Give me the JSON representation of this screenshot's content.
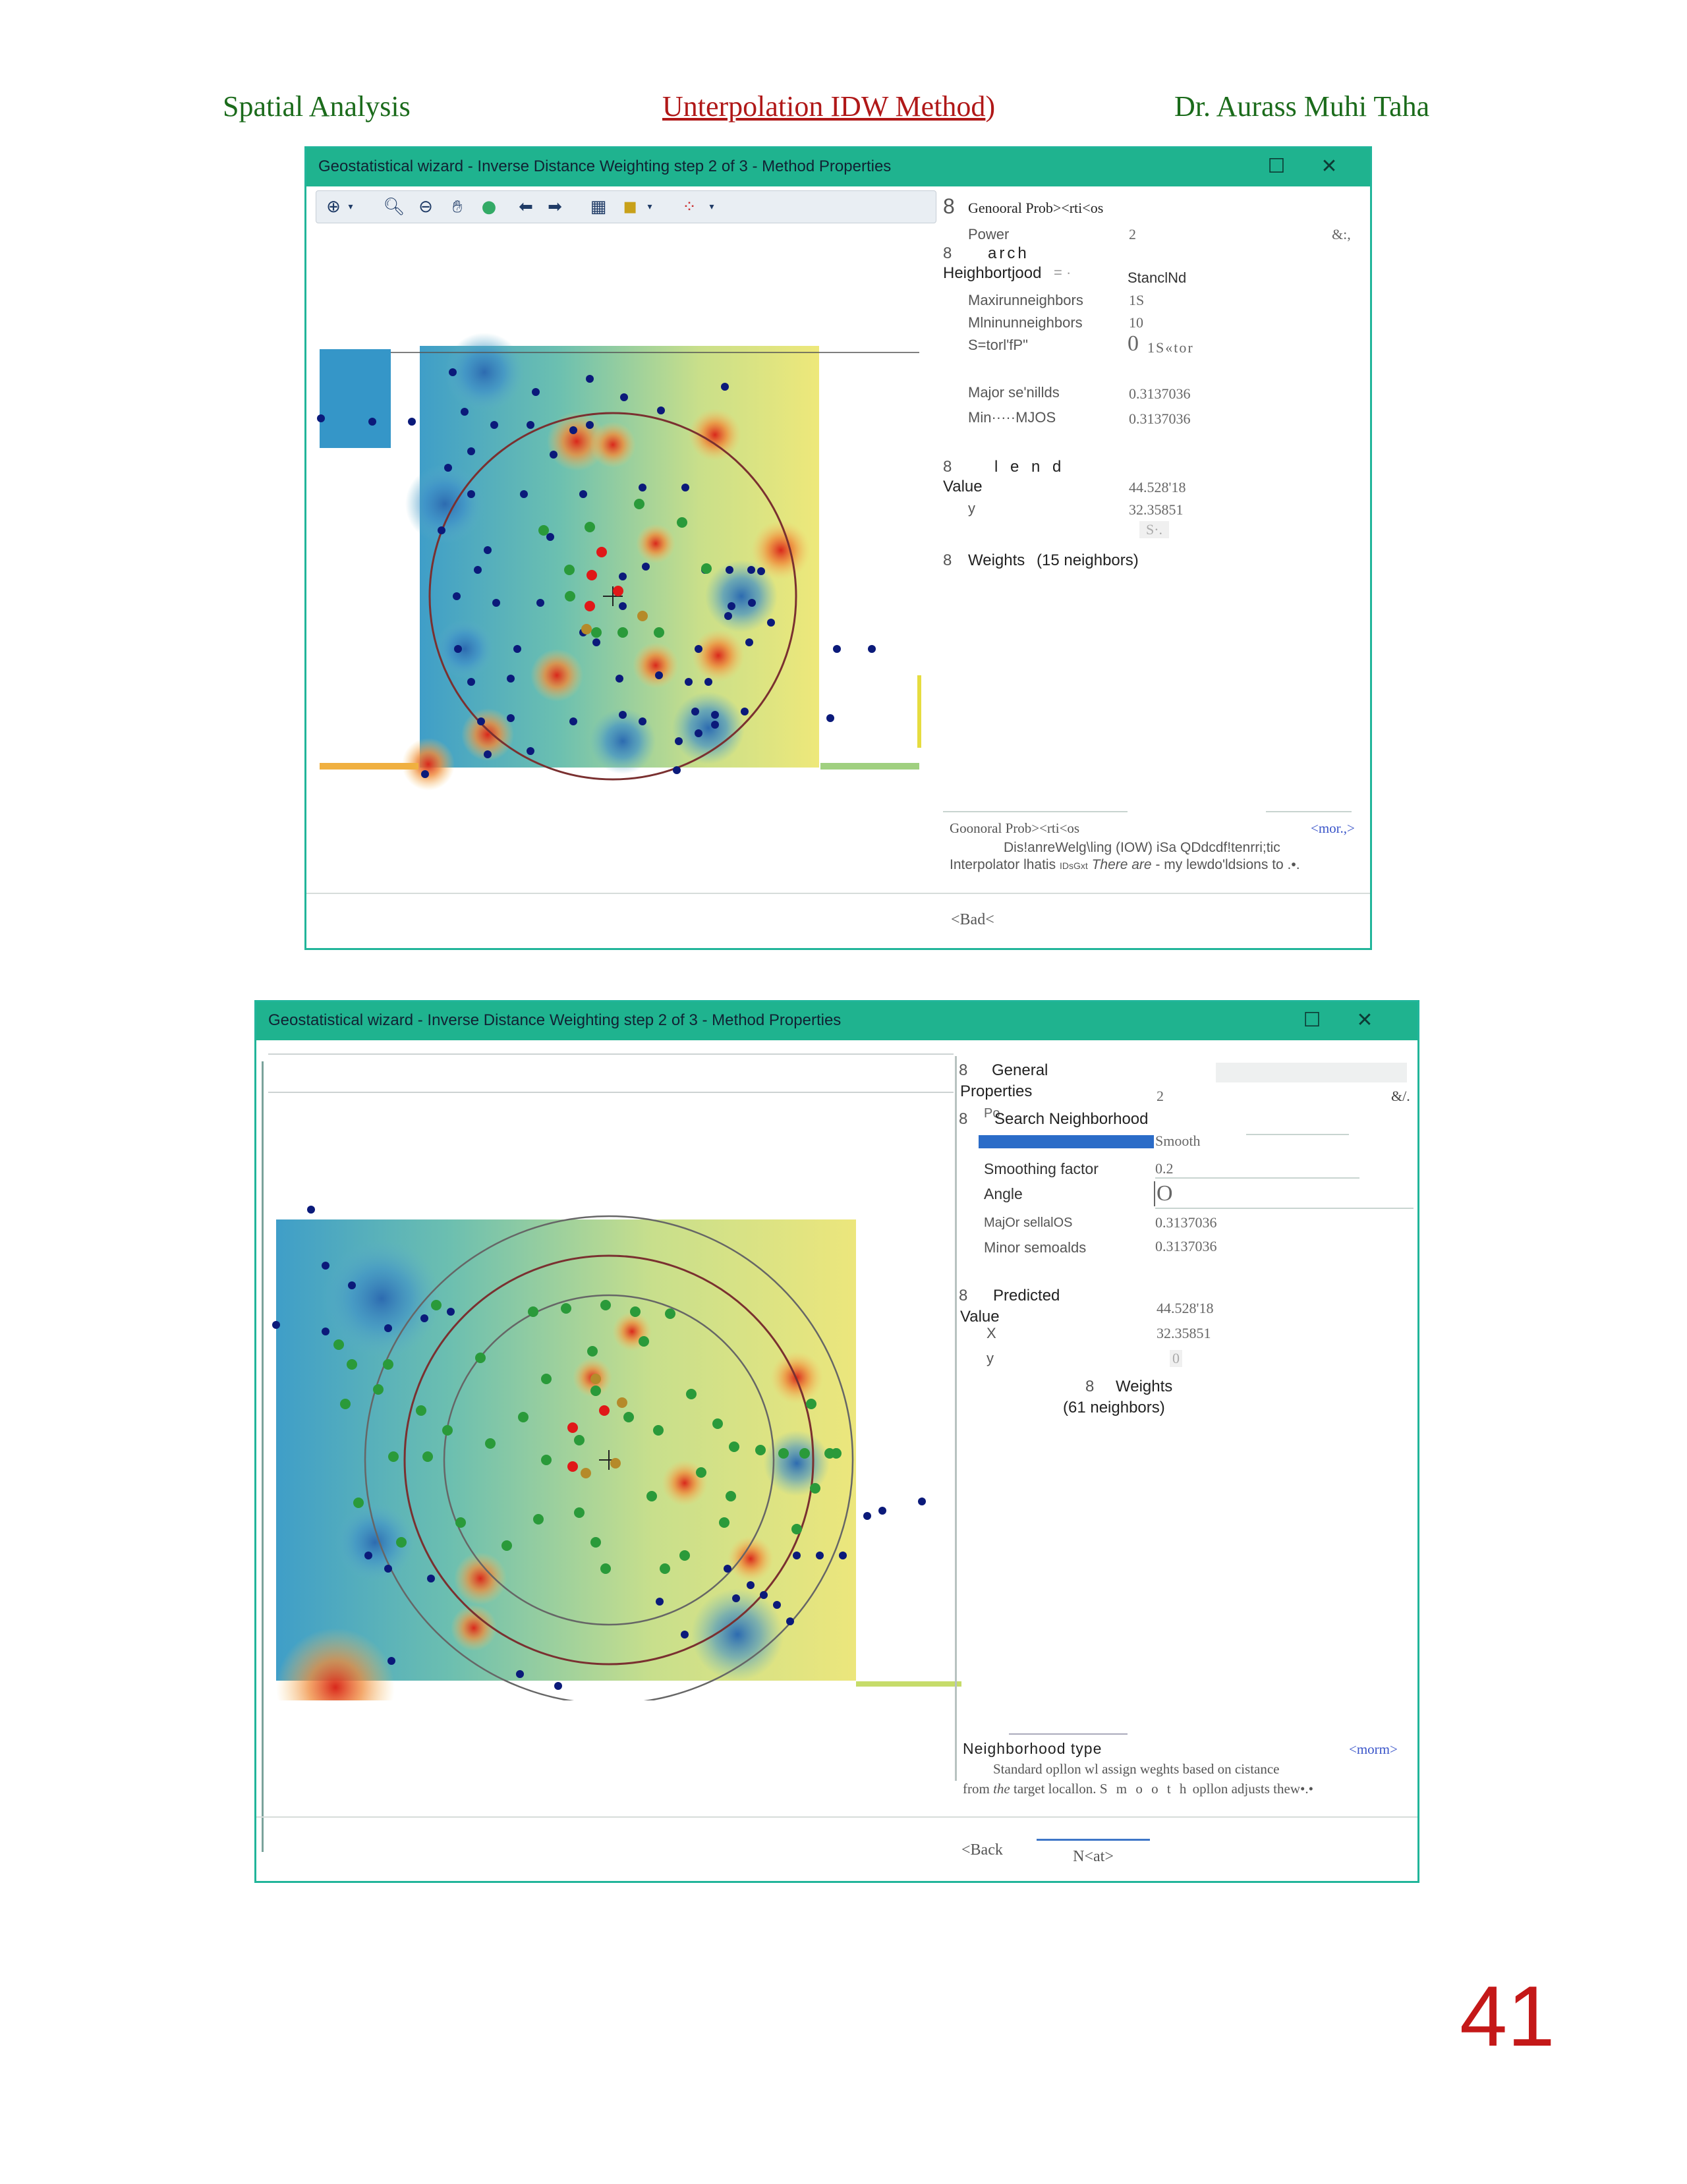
{
  "header": {
    "left": "Spatial Analysis",
    "center": "Unterpolation IDW Method",
    "center_suffix": ")",
    "right": "Dr. Aurass Muhi Taha"
  },
  "window1": {
    "title": "Geostatistical wizard - Inverse Distance Weighting step 2 of 3 - Method Properties",
    "maximize_icon": "maximize-icon",
    "close_icon": "close-icon",
    "toolbar_icons": [
      "pan-select-icon",
      "zoom-in-icon",
      "zoom-out-icon",
      "hand-icon",
      "globe-icon",
      "back-arrow-icon",
      "forward-arrow-icon",
      "table-icon",
      "layer-icon",
      "points-icon"
    ],
    "props": {
      "general_header": "Genooral Prob><rti<os",
      "general_toggle": "8",
      "power_label": "Power",
      "power_value": "2",
      "power_extra": "&:,",
      "search_toggle": "8",
      "search_header": "arch",
      "neighborhood_label": "Heighbortjood",
      "neighborhood_value": "StanclNd",
      "max_label": "Maxirunneighbors",
      "max_value": "1S",
      "min_label": "Mlninunneighbors",
      "min_value": "10",
      "sector_label": "S=torl'fP\"",
      "sector_value_a": "0",
      "sector_value_b": "1S«tor",
      "major_label": "Major se'nillds",
      "major_value": "0.3137036",
      "minor_label": "Min·····MJOS",
      "minor_value": "0.3137036",
      "lend_toggle": "8",
      "lend_header": "l e n d",
      "value_label": "Value",
      "value_value": "44.528'18",
      "y_label": "y",
      "y_value": "32.35851",
      "s_value": "S·.",
      "weights_toggle": "8",
      "weights_label": "Weights",
      "weights_count": "(15 neighbors)"
    },
    "description": {
      "title": "Goonoral Prob><rti<os",
      "more": "<mor.,>",
      "line1": "Dis!anreWelg\\ling (IOW) iSa QDdcdf!tenrri;tic",
      "line2_a": "Interpolator lhatis",
      "line2_b": "IDsGxt",
      "line2_c": "There are",
      "line2_d": "- my lewdo'ldsions to .•."
    },
    "back_button": "<Bad<"
  },
  "window2": {
    "title": "Geostatistical wizard - Inverse Distance Weighting step 2 of 3 - Method Properties",
    "maximize_icon": "maximize-icon",
    "close_icon": "close-icon",
    "props": {
      "general_toggle": "8",
      "general_header": "General",
      "general_header2": "Properties",
      "power_value": "2",
      "power_extra": "&/.",
      "search_toggle": "8",
      "search_header": "Search Neighborhood",
      "search_overlap": "Po",
      "neighborhood_value": "Smooth",
      "smoothing_label": "Smoothing factor",
      "smoothing_value": "0.2",
      "angle_label": "Angle",
      "angle_value": "O",
      "major_label": "MajOr sellalOS",
      "major_value": "0.3137036",
      "minor_label": "Minor semoalds",
      "minor_value": "0.3137036",
      "predicted_toggle": "8",
      "predicted_header": "Predicted",
      "value_label": "Value",
      "value_value": "44.528'18",
      "x_label": "X",
      "x_value": "32.35851",
      "y_label": "y",
      "y_value": "0",
      "weights_toggle": "8",
      "weights_label": "Weights",
      "weights_count": "(61 neighbors)"
    },
    "description": {
      "title": "Neighborhood type",
      "more": "<morm>",
      "line1": "Standard opllon wl assign weghts based on cistance",
      "line2_a": "from",
      "line2_b": "the",
      "line2_c": "target locallon.",
      "line2_d": "S m o o t h",
      "line2_e": "opllon adjusts thew•.•"
    },
    "back_button": "<Back",
    "next_button": "N<at>"
  },
  "page_number": "41",
  "colors": {
    "titlebar": "#1fb38f",
    "header_green": "#1b6b1b",
    "header_red": "#b01818",
    "page_number": "#c41818"
  }
}
